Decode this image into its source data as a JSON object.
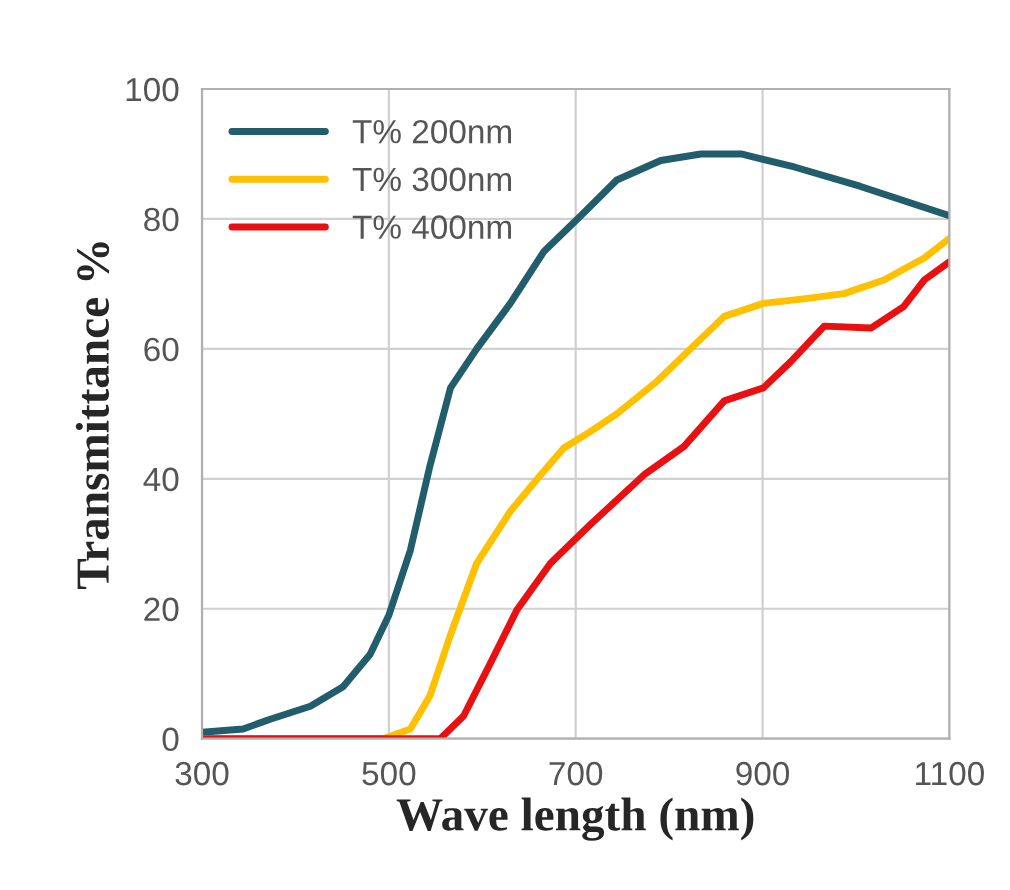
{
  "chart_data": {
    "type": "line",
    "xlabel": "Wave length (nm)",
    "ylabel": "Transmittance %",
    "xlim": [
      300,
      1100
    ],
    "ylim": [
      0,
      100
    ],
    "xticks": [
      300,
      500,
      700,
      900,
      1100
    ],
    "yticks": [
      0,
      20,
      40,
      60,
      80,
      100
    ],
    "grid": true,
    "legend": "top left",
    "marker": "none",
    "line_style": "solid",
    "series": [
      {
        "name": "T% 200nm",
        "color": "#215d6b",
        "x": [
          300,
          344,
          373,
          416,
          451,
          480,
          500,
          523,
          544,
          566,
          594,
          630,
          666,
          709,
          744,
          791,
          834,
          877,
          934,
          1005,
          1100
        ],
        "values": [
          1,
          1.5,
          3,
          5,
          8,
          13,
          19,
          29,
          42,
          54,
          60,
          67,
          75,
          81,
          86,
          89,
          90,
          90,
          88,
          85,
          80.5
        ]
      },
      {
        "name": "T% 300nm",
        "color": "#ffc000",
        "x": [
          300,
          494,
          523,
          544,
          566,
          594,
          630,
          659,
          687,
          716,
          744,
          787,
          830,
          859,
          901,
          944,
          987,
          1030,
          1073,
          1100
        ],
        "values": [
          0,
          0,
          1.5,
          6.6,
          16,
          27,
          35,
          40,
          44.7,
          47.3,
          50,
          55,
          61,
          65,
          67,
          67.7,
          68.5,
          70.6,
          74,
          77
        ]
      },
      {
        "name": "T% 400nm",
        "color": "#e81010",
        "x": [
          300,
          555,
          580,
          609,
          637,
          673,
          716,
          773,
          816,
          859,
          901,
          930,
          966,
          1016,
          1051,
          1073,
          1100
        ],
        "values": [
          0,
          0,
          3.5,
          11.7,
          19.8,
          27,
          33,
          40.6,
          45,
          52,
          54,
          58,
          63.5,
          63.2,
          66.5,
          70.6,
          73.4
        ]
      }
    ]
  }
}
